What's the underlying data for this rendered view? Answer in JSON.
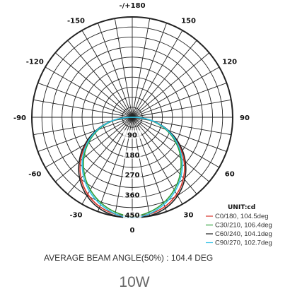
{
  "chart_data": {
    "type": "polar",
    "angle_labels": [
      {
        "deg": 0,
        "text": "0"
      },
      {
        "deg": 30,
        "text": "30"
      },
      {
        "deg": -30,
        "text": "-30"
      },
      {
        "deg": 60,
        "text": "60"
      },
      {
        "deg": -60,
        "text": "-60"
      },
      {
        "deg": 90,
        "text": "90"
      },
      {
        "deg": -90,
        "text": "-90"
      },
      {
        "deg": 120,
        "text": "120"
      },
      {
        "deg": -120,
        "text": "-120"
      },
      {
        "deg": 150,
        "text": "150"
      },
      {
        "deg": -150,
        "text": "-150"
      },
      {
        "deg": 180,
        "text": "-/+180"
      }
    ],
    "radial_ticks": [
      90,
      180,
      270,
      360,
      450
    ],
    "r_max": 450,
    "unit_label": "UNIT:cd",
    "grid": true,
    "series": [
      {
        "name": "C0/180, 104.5deg",
        "color": "#d9342b",
        "beam_angle": 104.5
      },
      {
        "name": "C30/210, 106.4deg",
        "color": "#2e9e3a",
        "beam_angle": 106.4
      },
      {
        "name": "C60/240, 104.1deg",
        "color": "#222222",
        "beam_angle": 104.1
      },
      {
        "name": "C90/270, 102.7deg",
        "color": "#2ec0e6",
        "beam_angle": 102.7
      }
    ],
    "legend_position": "bottom-right"
  },
  "caption": "AVERAGE BEAM ANGLE(50%) : 104.4 DEG",
  "wattage": "10W"
}
